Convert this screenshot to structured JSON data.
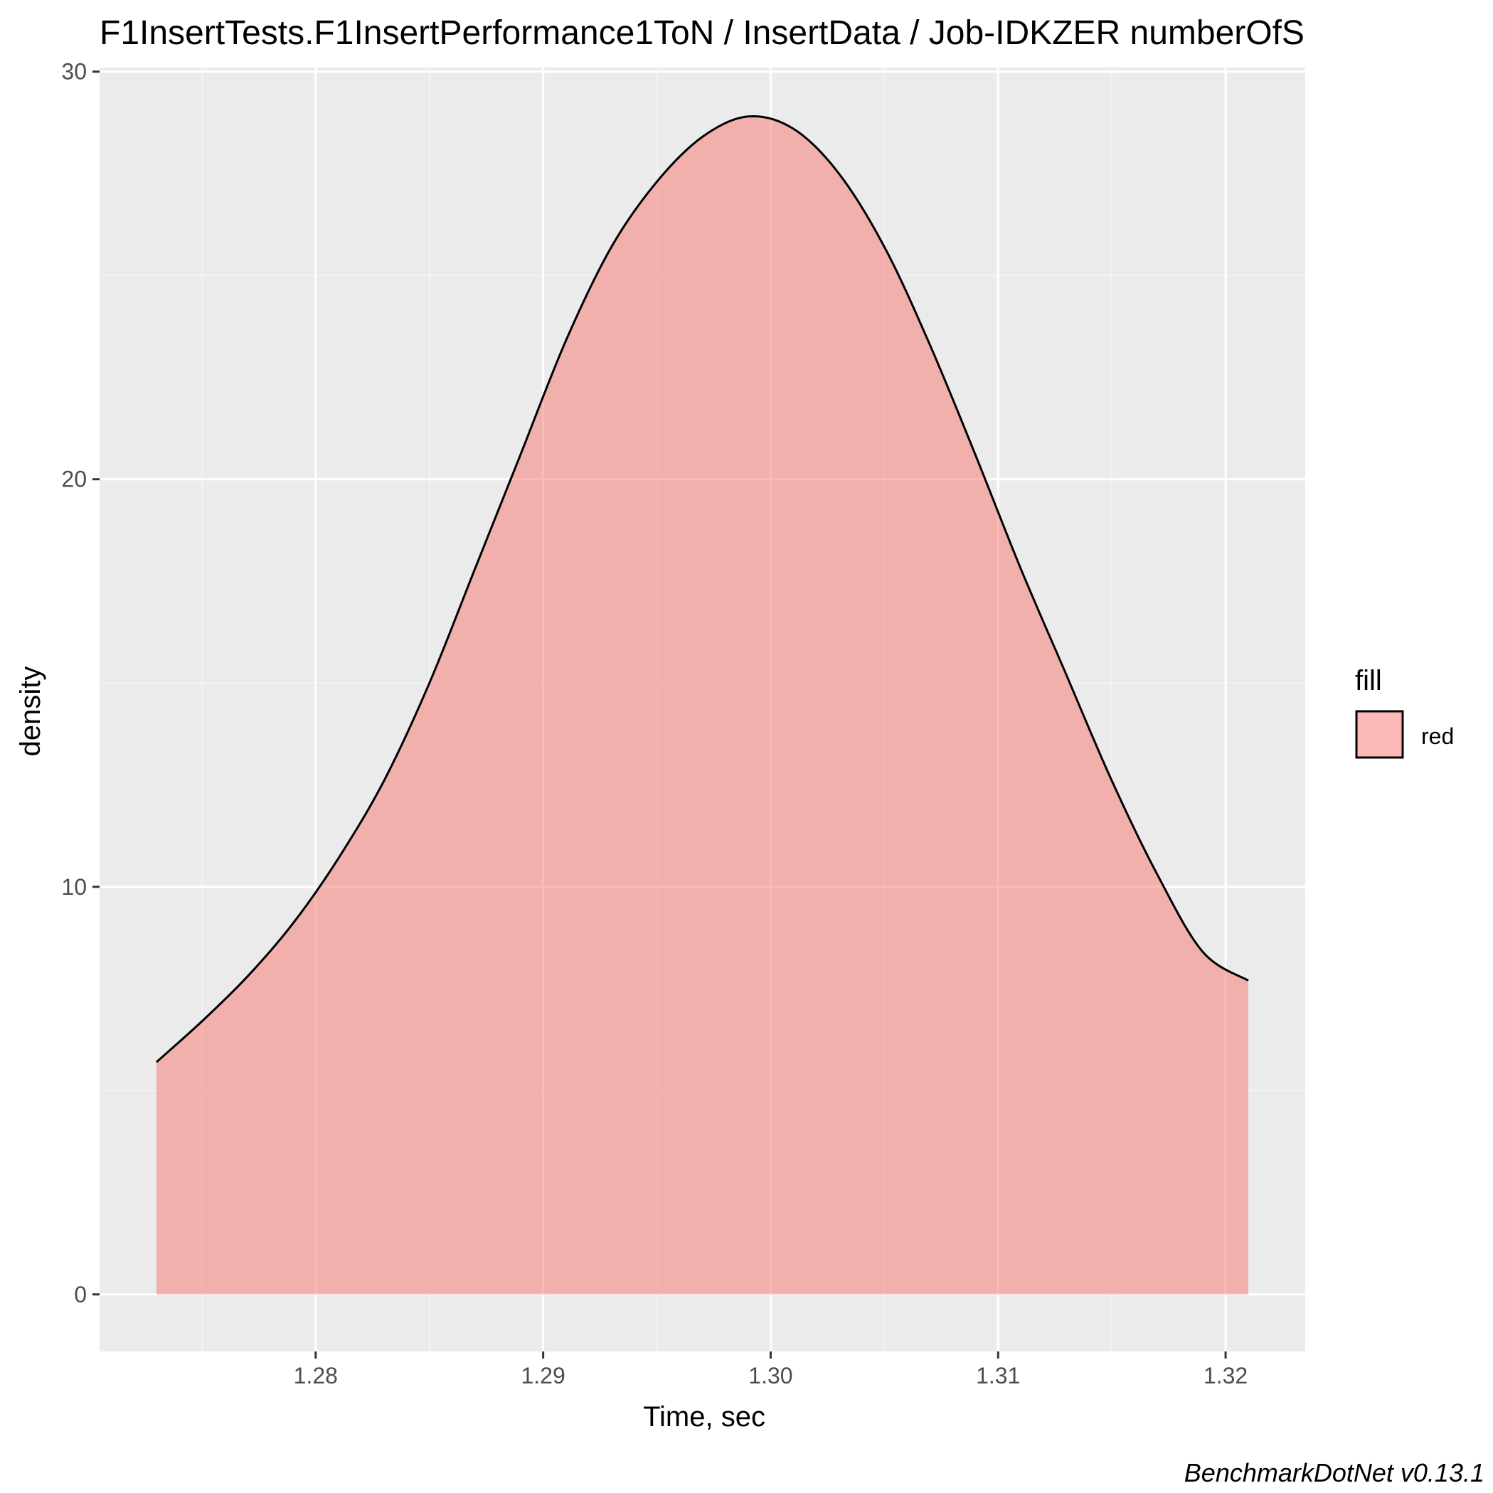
{
  "chart_data": {
    "type": "area",
    "title": "F1InsertTests.F1InsertPerformance1ToN / InsertData / Job-IDKZER numberOfS",
    "xlabel": "Time, sec",
    "ylabel": "density",
    "caption": "BenchmarkDotNet v0.13.1",
    "xlim": [
      1.2705,
      1.3235
    ],
    "ylim": [
      -1.4,
      30.1
    ],
    "x_ticks": [
      1.28,
      1.29,
      1.3,
      1.31,
      1.32
    ],
    "x_tick_labels": [
      "1.28",
      "1.29",
      "1.30",
      "1.31",
      "1.32"
    ],
    "y_ticks": [
      0,
      10,
      20,
      30
    ],
    "y_tick_labels": [
      "0",
      "10",
      "20",
      "30"
    ],
    "grid": true,
    "legend": {
      "title": "fill",
      "position": "right",
      "entries": [
        {
          "label": "red",
          "color": "#f8766d"
        }
      ]
    },
    "series": [
      {
        "name": "red",
        "x": [
          1.273,
          1.275,
          1.277,
          1.279,
          1.281,
          1.283,
          1.285,
          1.287,
          1.289,
          1.291,
          1.293,
          1.295,
          1.297,
          1.299,
          1.301,
          1.303,
          1.305,
          1.307,
          1.309,
          1.311,
          1.313,
          1.315,
          1.317,
          1.319,
          1.321
        ],
        "y": [
          5.7,
          6.7,
          7.8,
          9.1,
          10.7,
          12.6,
          15.0,
          17.8,
          20.6,
          23.4,
          25.7,
          27.3,
          28.4,
          28.9,
          28.6,
          27.5,
          25.7,
          23.3,
          20.6,
          17.8,
          15.2,
          12.6,
          10.3,
          8.4,
          7.7
        ]
      }
    ]
  },
  "colors": {
    "panel_background": "#ebebeb",
    "grid_major": "#ffffff",
    "grid_minor": "#f5f5f5",
    "area_fill": "#f8766d",
    "area_opacity": "0.5",
    "outline": "#000000"
  }
}
